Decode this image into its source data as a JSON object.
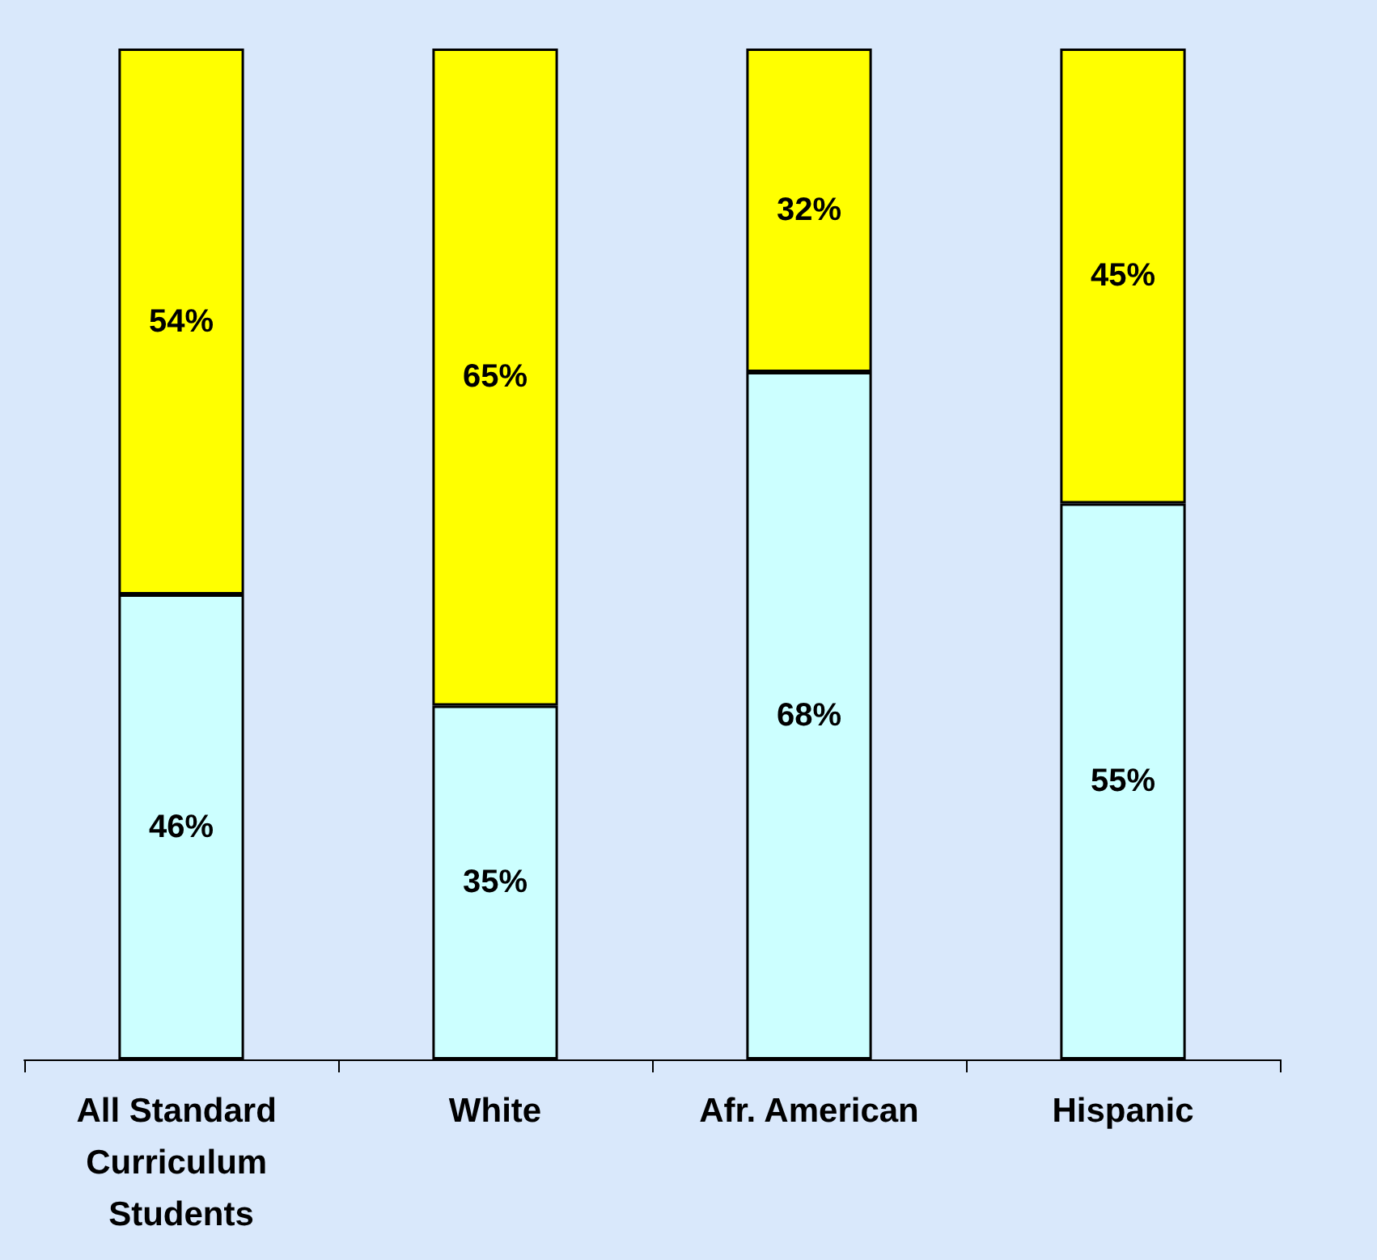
{
  "chart_data": {
    "type": "bar",
    "stacked": true,
    "categories": [
      "All Standard Curriculum Students",
      "White",
      "Afr. American",
      "Hispanic"
    ],
    "series": [
      {
        "color": "#ccffff",
        "values": [
          46,
          35,
          68,
          55
        ],
        "value_labels": [
          "46%",
          "35%",
          "68%",
          "55%"
        ]
      },
      {
        "color": "#ffff00",
        "values": [
          54,
          65,
          32,
          45
        ],
        "value_labels": [
          "54%",
          "65%",
          "32%",
          "45%"
        ]
      }
    ]
  }
}
